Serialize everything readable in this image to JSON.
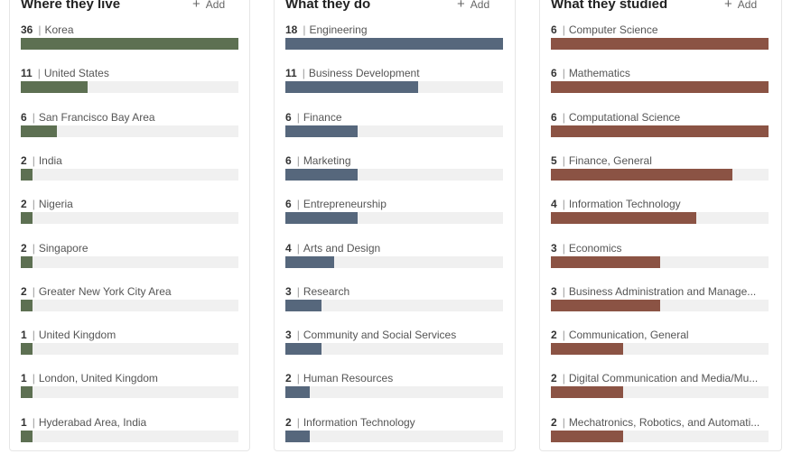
{
  "columns": [
    {
      "title": "Where they live",
      "add_label": "Add",
      "add_icon": "plus-icon",
      "color": "#5d7052",
      "max": 36,
      "items": [
        {
          "count": "36",
          "label": "Korea"
        },
        {
          "count": "11",
          "label": "United States"
        },
        {
          "count": "6",
          "label": "San Francisco Bay Area"
        },
        {
          "count": "2",
          "label": "India"
        },
        {
          "count": "2",
          "label": "Nigeria"
        },
        {
          "count": "2",
          "label": "Singapore"
        },
        {
          "count": "2",
          "label": "Greater New York City Area"
        },
        {
          "count": "1",
          "label": "United Kingdom"
        },
        {
          "count": "1",
          "label": "London, United Kingdom"
        },
        {
          "count": "1",
          "label": "Hyderabad Area, India"
        }
      ]
    },
    {
      "title": "What they do",
      "add_label": "Add",
      "add_icon": "plus-icon",
      "color": "#56677c",
      "max": 18,
      "items": [
        {
          "count": "18",
          "label": "Engineering"
        },
        {
          "count": "11",
          "label": "Business Development"
        },
        {
          "count": "6",
          "label": "Finance"
        },
        {
          "count": "6",
          "label": "Marketing"
        },
        {
          "count": "6",
          "label": "Entrepreneurship"
        },
        {
          "count": "4",
          "label": "Arts and Design"
        },
        {
          "count": "3",
          "label": "Research"
        },
        {
          "count": "3",
          "label": "Community and Social Services"
        },
        {
          "count": "2",
          "label": "Human Resources"
        },
        {
          "count": "2",
          "label": "Information Technology"
        }
      ]
    },
    {
      "title": "What they studied",
      "add_label": "Add",
      "add_icon": "plus-icon",
      "color": "#8b5344",
      "max": 6,
      "items": [
        {
          "count": "6",
          "label": "Computer Science"
        },
        {
          "count": "6",
          "label": "Mathematics"
        },
        {
          "count": "6",
          "label": "Computational Science"
        },
        {
          "count": "5",
          "label": "Finance, General"
        },
        {
          "count": "4",
          "label": "Information Technology"
        },
        {
          "count": "3",
          "label": "Economics"
        },
        {
          "count": "3",
          "label": "Business Administration and Manage..."
        },
        {
          "count": "2",
          "label": "Communication, General"
        },
        {
          "count": "2",
          "label": "Digital Communication and Media/Mu..."
        },
        {
          "count": "2",
          "label": "Mechatronics, Robotics, and Automati..."
        }
      ]
    }
  ]
}
